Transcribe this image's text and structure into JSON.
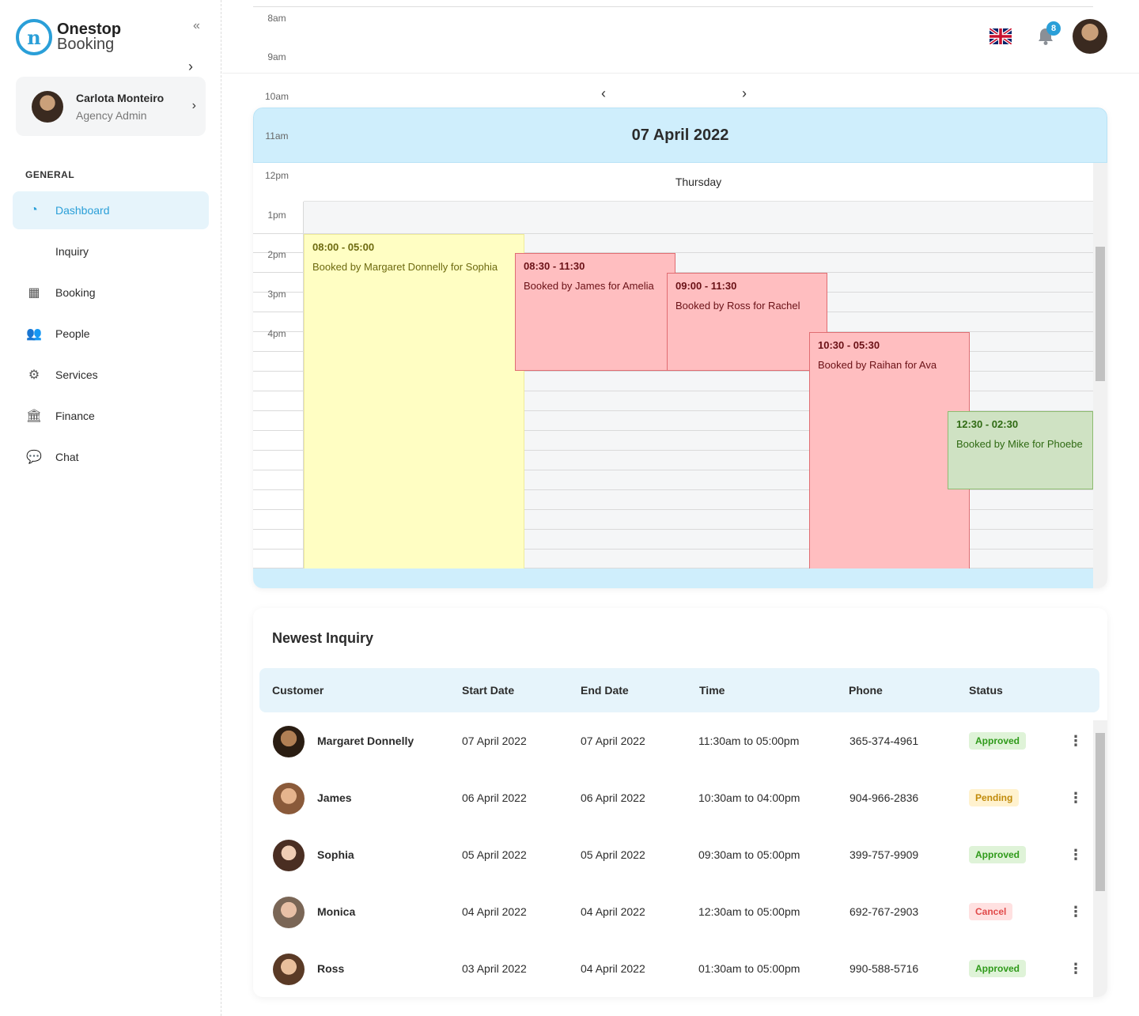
{
  "brand": {
    "line1": "Onestop",
    "line2": "Booking",
    "mark": "n"
  },
  "sidebar": {
    "collapse_icon": "«",
    "expand_icon": "›",
    "user": {
      "name": "Carlota Monteiro",
      "role": "Agency Admin",
      "chevron": "›"
    },
    "section_label": "GENERAL",
    "items": [
      {
        "label": "Dashboard",
        "icon": "dashboard-icon",
        "glyph": "◔",
        "active": true
      },
      {
        "label": "Inquiry",
        "icon": "inquiry-icon",
        "glyph": "",
        "active": false
      },
      {
        "label": "Booking",
        "icon": "calendar-icon",
        "glyph": "▦",
        "active": false
      },
      {
        "label": "People",
        "icon": "people-icon",
        "glyph": "👥",
        "active": false
      },
      {
        "label": "Services",
        "icon": "gear-icon",
        "glyph": "⚙",
        "active": false
      },
      {
        "label": "Finance",
        "icon": "bank-icon",
        "glyph": "🏛",
        "active": false
      },
      {
        "label": "Chat",
        "icon": "chat-icon",
        "glyph": "💬",
        "active": false
      }
    ]
  },
  "header": {
    "notifications_count": "8",
    "language": "uk-flag-icon"
  },
  "calendar": {
    "times": [
      "8am",
      "9am",
      "10am",
      "11am",
      "12pm",
      "1pm",
      "2pm",
      "3pm",
      "4pm"
    ],
    "prev_icon": "‹",
    "next_icon": "›",
    "date": "07 April 2022",
    "day": "Thursday",
    "events": [
      {
        "time": "08:00 - 05:00",
        "text": "Booked by Margaret Donnelly for Sophia",
        "color": "yellow"
      },
      {
        "time": "08:30 - 11:30",
        "text": "Booked by James for Amelia",
        "color": "red"
      },
      {
        "time": "09:00 - 11:30",
        "text": "Booked by Ross for Rachel",
        "color": "red"
      },
      {
        "time": "10:30 - 05:30",
        "text": "Booked by Raihan for Ava",
        "color": "red"
      },
      {
        "time": "12:30 - 02:30",
        "text": "Booked by Mike for Phoebe",
        "color": "green"
      }
    ]
  },
  "inquiry": {
    "title": "Newest Inquiry",
    "columns": [
      "Customer",
      "Start Date",
      "End Date",
      "Time",
      "Phone",
      "Status"
    ],
    "rows": [
      {
        "name": "Margaret Donnelly",
        "start": "07 April 2022",
        "end": "07 April 2022",
        "time": "11:30am to 05:00pm",
        "phone": "365-374-4961",
        "status": "Approved"
      },
      {
        "name": "James",
        "start": "06 April 2022",
        "end": "06 April 2022",
        "time": "10:30am to 04:00pm",
        "phone": "904-966-2836",
        "status": "Pending"
      },
      {
        "name": "Sophia",
        "start": "05 April 2022",
        "end": "05 April 2022",
        "time": "09:30am to 05:00pm",
        "phone": "399-757-9909",
        "status": "Approved"
      },
      {
        "name": "Monica",
        "start": "04 April 2022",
        "end": "04 April 2022",
        "time": "12:30am to 05:00pm",
        "phone": "692-767-2903",
        "status": "Cancel"
      },
      {
        "name": "Ross",
        "start": "03 April 2022",
        "end": "04 April 2022",
        "time": "01:30am to 05:00pm",
        "phone": "990-588-5716",
        "status": "Approved"
      }
    ],
    "kebab_icon": "⋮"
  },
  "colors": {
    "accent": "#2a9fd8",
    "calendar_header": "#cfeefc",
    "approved": "#2f9a1a",
    "pending": "#c08a0a",
    "cancel": "#e14a4a"
  }
}
